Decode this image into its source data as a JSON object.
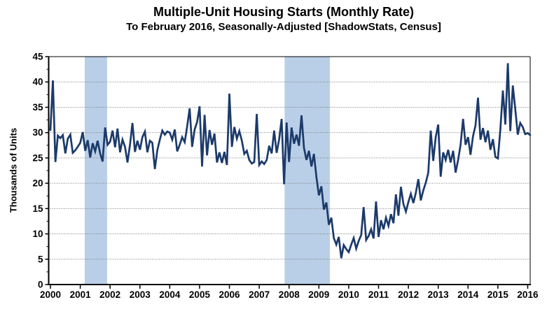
{
  "chart_data": {
    "type": "line",
    "title": "Multiple-Unit Housing Starts (Monthly Rate)",
    "subtitle": "To February 2016, Seasonally-Adjusted [ShadowStats, Census]",
    "xlabel": "",
    "ylabel": "Thousands of Units",
    "ylim": [
      0,
      45
    ],
    "y_ticks": [
      0,
      5,
      10,
      15,
      20,
      25,
      30,
      35,
      40,
      45
    ],
    "y_minor_tick_step": 2.5,
    "x_range": [
      2000,
      2016.0833
    ],
    "x_tick_labels": [
      "2000",
      "2001",
      "2002",
      "2003",
      "2004",
      "2005",
      "2006",
      "2007",
      "2008",
      "2009",
      "2010",
      "2011",
      "2012",
      "2013",
      "2014",
      "2015",
      "2016"
    ],
    "grid": "horizontal-dotted",
    "legend": "none",
    "series_name": "Multiple-unit housing starts, monthly rate (thousands of units)",
    "start_period": "2000-01",
    "end_period": "2016-02",
    "frequency": "monthly",
    "recession_bands": [
      {
        "start": 2001.15,
        "end": 2001.9
      },
      {
        "start": 2007.85,
        "end": 2009.37
      }
    ],
    "values": [
      30.5,
      40.3,
      24.2,
      29.4,
      28.9,
      29.5,
      25.9,
      28.8,
      29.6,
      26.0,
      26.5,
      27.2,
      28.0,
      30.1,
      26.4,
      28.5,
      25.1,
      27.9,
      26.3,
      28.4,
      25.9,
      24.3,
      31.0,
      27.6,
      28.2,
      30.4,
      27.1,
      30.8,
      26.1,
      28.6,
      27.2,
      24.1,
      27.6,
      31.9,
      26.2,
      28.4,
      26.6,
      29.1,
      30.2,
      26.1,
      28.4,
      28.0,
      22.8,
      26.5,
      28.6,
      30.4,
      29.6,
      30.2,
      30.0,
      28.6,
      30.6,
      26.3,
      27.6,
      29.1,
      28.1,
      31.2,
      34.8,
      27.2,
      30.6,
      32.1,
      35.2,
      23.3,
      33.5,
      25.5,
      30.5,
      27.6,
      29.8,
      24.1,
      26.1,
      24.0,
      26.2,
      23.6,
      37.7,
      27.2,
      31.1,
      28.8,
      30.3,
      28.4,
      25.8,
      26.4,
      24.6,
      23.9,
      24.2,
      33.7,
      23.6,
      24.3,
      23.8,
      24.6,
      27.4,
      25.9,
      30.4,
      26.0,
      28.6,
      32.7,
      19.8,
      32.0,
      24.2,
      31.0,
      27.8,
      29.6,
      27.4,
      33.4,
      27.0,
      24.6,
      26.4,
      23.3,
      25.8,
      21.2,
      17.6,
      19.4,
      14.8,
      16.2,
      11.8,
      13.2,
      9.2,
      7.9,
      9.4,
      5.2,
      7.8,
      7.0,
      6.4,
      7.9,
      9.2,
      7.1,
      8.6,
      9.8,
      15.3,
      8.8,
      9.6,
      10.9,
      9.1,
      16.4,
      9.4,
      12.7,
      10.9,
      13.2,
      11.6,
      13.9,
      12.1,
      17.8,
      13.6,
      19.3,
      15.9,
      14.4,
      16.3,
      17.9,
      16.1,
      18.1,
      20.8,
      16.6,
      18.6,
      20.1,
      22.1,
      30.4,
      24.4,
      29.1,
      31.6,
      21.3,
      26.1,
      24.6,
      26.6,
      24.1,
      26.4,
      22.1,
      24.6,
      27.6,
      32.7,
      27.6,
      29.1,
      25.6,
      29.3,
      31.4,
      36.9,
      28.6,
      30.9,
      28.1,
      30.4,
      26.6,
      28.7,
      25.2,
      24.9,
      30.6,
      38.3,
      31.6,
      43.7,
      30.3,
      39.3,
      34.6,
      29.6,
      31.9,
      31.1,
      29.7,
      29.9,
      29.5
    ],
    "colors": {
      "line": "#1c3a6a",
      "recession_band": "#b9cfe8",
      "grid": "#7f7f7f",
      "axis": "#000000",
      "background": "#ffffff"
    }
  }
}
